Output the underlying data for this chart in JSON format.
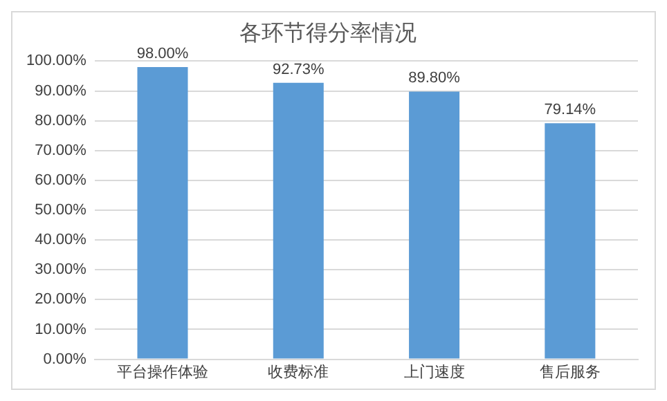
{
  "chart_data": {
    "type": "bar",
    "title": "各环节得分率情况",
    "categories": [
      "平台操作体验",
      "收费标准",
      "上门速度",
      "售后服务"
    ],
    "values": [
      98,
      92.73,
      89.8,
      79.14
    ],
    "value_labels": [
      "98.00%",
      "92.73%",
      "89.80%",
      "79.14%"
    ],
    "color": "#5b9bd5",
    "ylim": [
      0,
      100
    ],
    "yticks": [
      {
        "value": 0,
        "label": "0.00%"
      },
      {
        "value": 10,
        "label": "10.00%"
      },
      {
        "value": 20,
        "label": "20.00%"
      },
      {
        "value": 30,
        "label": "30.00%"
      },
      {
        "value": 40,
        "label": "40.00%"
      },
      {
        "value": 50,
        "label": "50.00%"
      },
      {
        "value": 60,
        "label": "60.00%"
      },
      {
        "value": 70,
        "label": "70.00%"
      },
      {
        "value": 80,
        "label": "80.00%"
      },
      {
        "value": 90,
        "label": "90.00%"
      },
      {
        "value": 100,
        "label": "100.00%"
      }
    ],
    "grid": "y"
  }
}
